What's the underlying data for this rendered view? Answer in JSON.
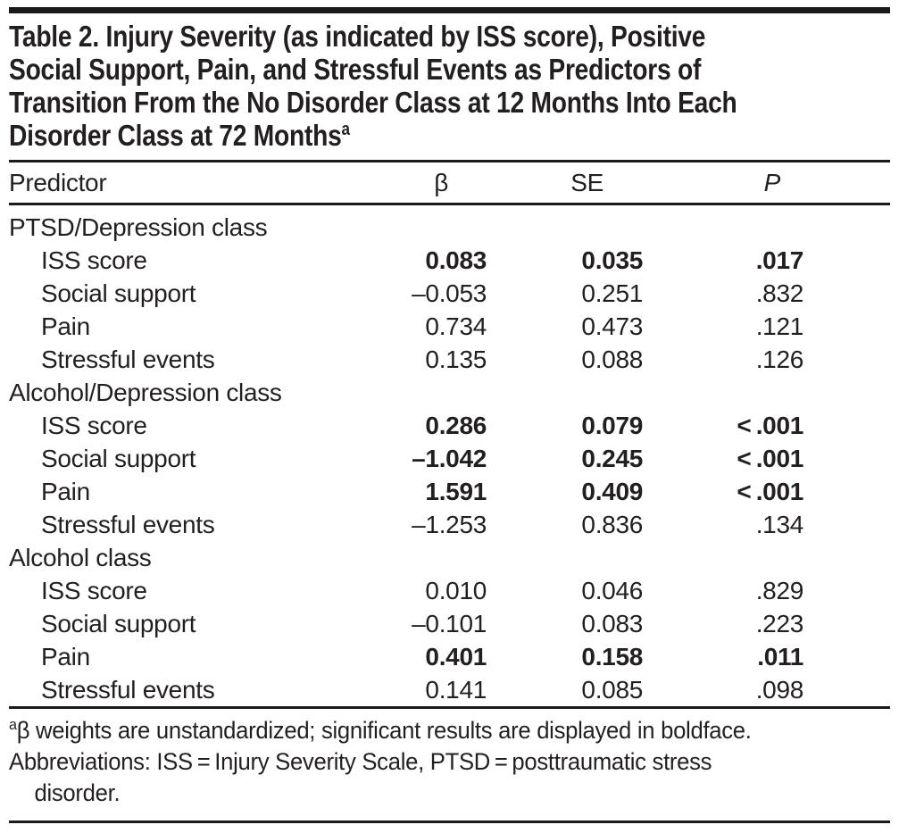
{
  "table_title": {
    "lines": [
      "Table 2. Injury Severity (as indicated by ISS score), Positive",
      "Social Support, Pain, and Stressful Events as Predictors of",
      "Transition From the No Disorder Class at 12 Months Into Each",
      "Disorder Class at 72 Months"
    ],
    "superscript": "a"
  },
  "columns": {
    "predictor": "Predictor",
    "beta": "β",
    "se": "SE",
    "p": "P"
  },
  "rows": [
    {
      "type": "group",
      "label": "PTSD/Depression class"
    },
    {
      "type": "data",
      "label": "ISS score",
      "beta": "0.083",
      "se": "0.035",
      "p": ".017",
      "significant": true
    },
    {
      "type": "data",
      "label": "Social support",
      "beta": "–0.053",
      "se": "0.251",
      "p": ".832",
      "significant": false
    },
    {
      "type": "data",
      "label": "Pain",
      "beta": "0.734",
      "se": "0.473",
      "p": ".121",
      "significant": false
    },
    {
      "type": "data",
      "label": "Stressful events",
      "beta": "0.135",
      "se": "0.088",
      "p": ".126",
      "significant": false
    },
    {
      "type": "group",
      "label": "Alcohol/Depression class"
    },
    {
      "type": "data",
      "label": "ISS score",
      "beta": "0.286",
      "se": "0.079",
      "p": "< .001",
      "significant": true
    },
    {
      "type": "data",
      "label": "Social support",
      "beta": "–1.042",
      "se": "0.245",
      "p": "< .001",
      "significant": true
    },
    {
      "type": "data",
      "label": "Pain",
      "beta": "1.591",
      "se": "0.409",
      "p": "< .001",
      "significant": true
    },
    {
      "type": "data",
      "label": "Stressful events",
      "beta": "–1.253",
      "se": "0.836",
      "p": ".134",
      "significant": false
    },
    {
      "type": "group",
      "label": "Alcohol class"
    },
    {
      "type": "data",
      "label": "ISS score",
      "beta": "0.010",
      "se": "0.046",
      "p": ".829",
      "significant": false
    },
    {
      "type": "data",
      "label": "Social support",
      "beta": "–0.101",
      "se": "0.083",
      "p": ".223",
      "significant": false
    },
    {
      "type": "data",
      "label": "Pain",
      "beta": "0.401",
      "se": "0.158",
      "p": ".011",
      "significant": true
    },
    {
      "type": "data",
      "label": "Stressful events",
      "beta": "0.141",
      "se": "0.085",
      "p": ".098",
      "significant": false
    }
  ],
  "footnote": {
    "marker": "a",
    "line1": "β weights are unstandardized; significant results are displayed in boldface.",
    "line2": "Abbreviations: ISS = Injury Severity Scale, PTSD = posttraumatic stress",
    "line3": "disorder."
  },
  "colors": {
    "text": "#231f20",
    "rule": "#1a1a1a",
    "background": "#ffffff"
  }
}
